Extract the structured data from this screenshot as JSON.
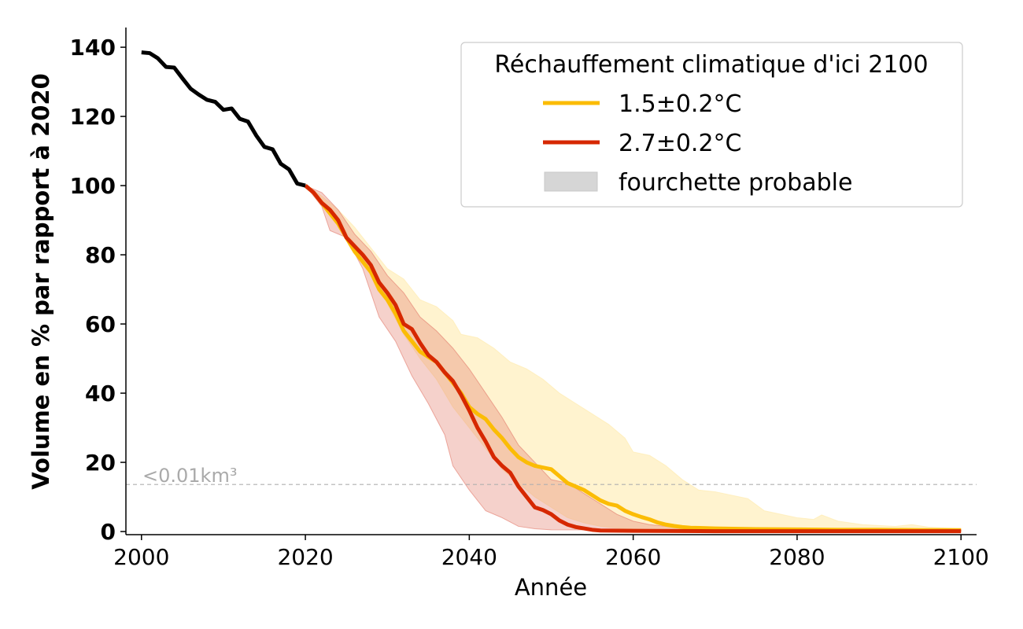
{
  "chart_data": {
    "type": "line",
    "xlabel": "Année",
    "ylabel": "Volume en % par rapport à 2020",
    "xlim": [
      1998.1,
      2101.9
    ],
    "ylim": [
      -0.9,
      145.7
    ],
    "xticks": [
      2000,
      2020,
      2040,
      2060,
      2080,
      2100
    ],
    "yticks": [
      0,
      20,
      40,
      60,
      80,
      100,
      120,
      140
    ],
    "grid": false,
    "legend": {
      "title": "Réchauffement climatique d'ici 2100",
      "placement": "top-right",
      "entries": [
        "1.5±0.2°C",
        "2.7±0.2°C",
        "fourchette probable"
      ]
    },
    "threshold": {
      "y": 13.6,
      "label": "<0.01km³",
      "color": "#b0b0b0"
    },
    "historical": {
      "color": "#000000",
      "x": [
        2000,
        2001,
        2002,
        2003,
        2004,
        2005,
        2006,
        2007,
        2008,
        2009,
        2010,
        2011,
        2012,
        2013,
        2014,
        2015,
        2016,
        2017,
        2018,
        2019,
        2020
      ],
      "y": [
        138.5,
        138.3,
        136.8,
        134.3,
        134.1,
        131,
        128,
        126.3,
        124.8,
        124.2,
        121.9,
        122.3,
        119.3,
        118.5,
        114.5,
        111.2,
        110.5,
        106.3,
        104.7,
        100.6,
        100
      ]
    },
    "series": [
      {
        "name": "1.5±0.2°C",
        "color": "#fbbc05",
        "band_color": "#ffe9a8",
        "x": [
          2020,
          2021,
          2022,
          2023,
          2024,
          2025,
          2026,
          2027,
          2028,
          2029,
          2030,
          2031,
          2032,
          2033,
          2034,
          2035,
          2036,
          2037,
          2038,
          2039,
          2040,
          2041,
          2042,
          2043,
          2044,
          2045,
          2046,
          2047,
          2048,
          2049,
          2050,
          2051,
          2052,
          2053,
          2054,
          2055,
          2056,
          2057,
          2058,
          2059,
          2060,
          2061,
          2062,
          2063,
          2064,
          2065,
          2066,
          2067,
          2070,
          2075,
          2080,
          2085,
          2090,
          2095,
          2100
        ],
        "y": [
          100,
          98,
          95,
          92,
          89,
          85,
          81,
          78,
          75,
          70,
          67,
          63,
          58,
          55,
          52,
          50.5,
          49,
          46,
          43,
          40,
          36,
          34,
          32.5,
          29.5,
          27,
          24,
          21.5,
          20,
          19,
          18.5,
          18,
          16,
          14,
          13,
          12,
          10.5,
          9,
          8,
          7.5,
          6,
          5,
          4.2,
          3.5,
          2.6,
          2,
          1.6,
          1.3,
          1.1,
          0.9,
          0.7,
          0.6,
          0.5,
          0.5,
          0.4,
          0.4
        ],
        "band_x_upper": [
          2020,
          2022,
          2024,
          2026,
          2028,
          2030,
          2032,
          2034,
          2036,
          2038,
          2039,
          2041,
          2043,
          2045,
          2047,
          2049,
          2051,
          2053,
          2055,
          2057,
          2059,
          2060,
          2062,
          2064,
          2066,
          2068,
          2070,
          2074,
          2076,
          2080,
          2082,
          2083,
          2085,
          2088,
          2092,
          2094,
          2096,
          2100
        ],
        "band_upper": [
          100,
          97,
          93,
          88,
          82,
          76,
          73,
          67,
          65,
          61,
          57,
          56,
          53,
          49,
          47,
          44,
          40,
          37,
          34,
          31,
          27,
          23,
          22,
          19,
          15,
          12,
          11.5,
          9.5,
          6,
          4,
          3.5,
          4.8,
          3,
          2,
          1.5,
          2,
          1.3,
          0.8
        ],
        "band_x_lower": [
          2020,
          2022,
          2024,
          2026,
          2028,
          2030,
          2032,
          2034,
          2036,
          2038,
          2040,
          2042,
          2044,
          2046,
          2048,
          2050,
          2052,
          2054,
          2056,
          2058,
          2062,
          2070,
          2100
        ],
        "band_lower": [
          100,
          95,
          90,
          83,
          75,
          66,
          57,
          50,
          44,
          36,
          30,
          24,
          18,
          14,
          10,
          7,
          4,
          2.5,
          1.5,
          1,
          0.5,
          0.3,
          0.2
        ]
      },
      {
        "name": "2.7±0.2°C",
        "color": "#d62800",
        "band_color": "#e37a6b",
        "x": [
          2020,
          2021,
          2022,
          2023,
          2024,
          2025,
          2026,
          2027,
          2028,
          2029,
          2030,
          2031,
          2032,
          2033,
          2034,
          2035,
          2036,
          2037,
          2038,
          2039,
          2040,
          2041,
          2042,
          2043,
          2044,
          2045,
          2046,
          2047,
          2048,
          2049,
          2050,
          2051,
          2052,
          2053,
          2054,
          2055,
          2056,
          2060,
          2070,
          2080,
          2090,
          2100
        ],
        "y": [
          100,
          98,
          95,
          93,
          90,
          85,
          82.5,
          80,
          77,
          72,
          69,
          65.5,
          60,
          58.5,
          54.5,
          51,
          49,
          46,
          43.5,
          39.5,
          35,
          30,
          26,
          21.5,
          19,
          17,
          13,
          10,
          7,
          6.2,
          5,
          3.2,
          2,
          1.3,
          0.9,
          0.5,
          0.3,
          0.2,
          0.1,
          0.1,
          0.1,
          0.1
        ],
        "band_x_upper": [
          2020,
          2022,
          2024,
          2026,
          2028,
          2030,
          2032,
          2034,
          2036,
          2038,
          2040,
          2042,
          2044,
          2046,
          2048,
          2050,
          2052,
          2054,
          2056,
          2058,
          2060,
          2062,
          2066,
          2072,
          2100
        ],
        "band_upper": [
          100,
          98,
          93,
          86,
          81,
          74,
          69,
          62,
          58,
          53,
          47,
          40,
          33,
          25,
          20,
          15,
          14,
          11,
          8,
          5,
          3,
          2,
          1,
          0.5,
          0.3
        ],
        "band_x_lower": [
          2020,
          2022,
          2023,
          2025,
          2027,
          2029,
          2031,
          2033,
          2035,
          2037,
          2038,
          2040,
          2042,
          2044,
          2046,
          2048,
          2050,
          2100
        ],
        "band_lower": [
          100,
          94,
          87,
          85,
          76,
          62,
          55,
          45,
          37,
          28,
          19,
          12,
          6,
          4,
          1.5,
          0.8,
          0.5,
          0.1
        ]
      }
    ]
  }
}
